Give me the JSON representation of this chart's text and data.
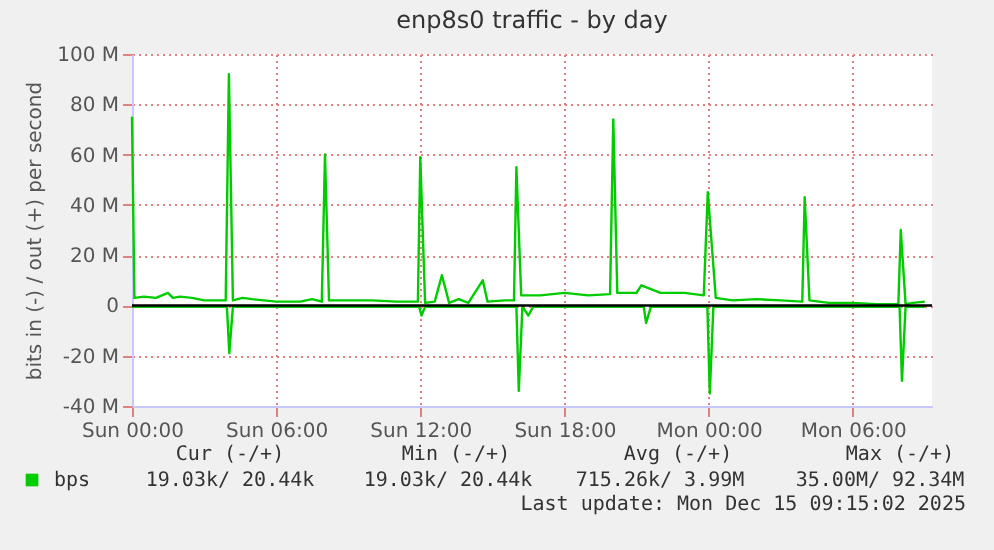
{
  "chart_data": {
    "type": "line",
    "title": "enp8s0 traffic - by day",
    "ylabel": "bits in (-) / out (+) per second",
    "xlim": [
      "2025-12-14T00:00",
      "2025-12-15T09:18"
    ],
    "xticks": [
      {
        "value": "2025-12-14T00:00",
        "label": "Sun 00:00"
      },
      {
        "value": "2025-12-14T06:00",
        "label": "Sun 06:00"
      },
      {
        "value": "2025-12-14T12:00",
        "label": "Sun 12:00"
      },
      {
        "value": "2025-12-14T18:00",
        "label": "Sun 18:00"
      },
      {
        "value": "2025-12-15T00:00",
        "label": "Mon 00:00"
      },
      {
        "value": "2025-12-15T06:00",
        "label": "Mon 06:00"
      }
    ],
    "ylim": [
      -40,
      100
    ],
    "yticks": [
      {
        "value": -40,
        "label": "-40 M"
      },
      {
        "value": -20,
        "label": "-20 M"
      },
      {
        "value": 0,
        "label": "0"
      },
      {
        "value": 20,
        "label": "20 M"
      },
      {
        "value": 40,
        "label": "40 M"
      },
      {
        "value": 60,
        "label": "60 M"
      },
      {
        "value": 80,
        "label": "80 M"
      },
      {
        "value": 100,
        "label": "100 M"
      }
    ],
    "grid": true,
    "legend": "bottom left",
    "ref_lines": [
      {
        "axis": "y",
        "value": 0,
        "color": "#000000"
      }
    ],
    "series": [
      {
        "name": "bps",
        "color": "#00cc00",
        "x": [
          "2025-12-14T00:00",
          "2025-12-14T00:06",
          "2025-12-14T00:30",
          "2025-12-14T01:00",
          "2025-12-14T01:30",
          "2025-12-14T01:42",
          "2025-12-14T02:00",
          "2025-12-14T02:30",
          "2025-12-14T03:00",
          "2025-12-14T03:54",
          "2025-12-14T04:02",
          "2025-12-14T04:12",
          "2025-12-14T04:36",
          "2025-12-14T05:00",
          "2025-12-14T05:30",
          "2025-12-14T06:00",
          "2025-12-14T07:00",
          "2025-12-14T07:30",
          "2025-12-14T07:54",
          "2025-12-14T08:02",
          "2025-12-14T08:12",
          "2025-12-14T09:00",
          "2025-12-14T10:00",
          "2025-12-14T11:00",
          "2025-12-14T11:54",
          "2025-12-14T12:00",
          "2025-12-14T12:12",
          "2025-12-14T12:36",
          "2025-12-14T12:54",
          "2025-12-14T13:12",
          "2025-12-14T13:36",
          "2025-12-14T14:00",
          "2025-12-14T14:36",
          "2025-12-14T14:48",
          "2025-12-14T15:30",
          "2025-12-14T15:54",
          "2025-12-14T16:00",
          "2025-12-14T16:12",
          "2025-12-14T17:00",
          "2025-12-14T18:00",
          "2025-12-14T19:00",
          "2025-12-14T19:54",
          "2025-12-14T20:02",
          "2025-12-14T20:12",
          "2025-12-14T21:00",
          "2025-12-14T21:12",
          "2025-12-14T22:00",
          "2025-12-14T23:00",
          "2025-12-14T23:48",
          "2025-12-14T23:58",
          "2025-12-15T00:18",
          "2025-12-15T01:00",
          "2025-12-15T02:00",
          "2025-12-15T03:00",
          "2025-12-15T03:54",
          "2025-12-15T04:00",
          "2025-12-15T04:12",
          "2025-12-15T05:00",
          "2025-12-15T06:00",
          "2025-12-15T07:00",
          "2025-12-15T07:54",
          "2025-12-15T08:00",
          "2025-12-15T08:12",
          "2025-12-15T08:30",
          "2025-12-15T09:00"
        ],
        "values": [
          75,
          3,
          3.5,
          3,
          5,
          3,
          3.5,
          3,
          2,
          2,
          92,
          2,
          3,
          2.5,
          2,
          1.5,
          1.5,
          2.5,
          1.5,
          60,
          2,
          2,
          2,
          1.5,
          1.5,
          59,
          1,
          1.5,
          12,
          1,
          2.5,
          1,
          10,
          1.5,
          2,
          2,
          55,
          4,
          4,
          5,
          4,
          4.5,
          74,
          5,
          5,
          8,
          5,
          5,
          4,
          45,
          3,
          2,
          2.5,
          2,
          1.5,
          43,
          2,
          1,
          1,
          0.5,
          0.5,
          30,
          0.5,
          1,
          1.5
        ]
      },
      {
        "color": "#00cc00",
        "x": [
          "2025-12-14T00:00",
          "2025-12-14T03:57",
          "2025-12-14T04:03",
          "2025-12-14T04:12",
          "2025-12-14T11:57",
          "2025-12-14T12:03",
          "2025-12-14T12:12",
          "2025-12-14T16:00",
          "2025-12-14T16:06",
          "2025-12-14T16:15",
          "2025-12-14T16:30",
          "2025-12-14T16:42",
          "2025-12-14T21:18",
          "2025-12-14T21:24",
          "2025-12-14T21:36",
          "2025-12-14T23:57",
          "2025-12-15T00:03",
          "2025-12-15T00:12",
          "2025-12-15T07:57",
          "2025-12-15T08:03",
          "2025-12-15T08:12",
          "2025-12-15T09:00"
        ],
        "values": [
          -0.5,
          -0.5,
          -19,
          -0.5,
          -0.5,
          -4,
          -0.5,
          -0.5,
          -34,
          -0.5,
          -4,
          -0.5,
          -0.5,
          -7,
          -0.5,
          -0.5,
          -35,
          -0.5,
          -0.5,
          -30,
          -0.5,
          -0.5
        ]
      }
    ],
    "annotations": [
      "Cur (-/+)",
      "Min (-/+)",
      "Avg (-/+)",
      "Max (-/+)",
      "19.03k/ 20.44k",
      "19.03k/ 20.44k",
      "715.26k/  3.99M",
      "35.00M/ 92.34M",
      "Last update: Mon Dec 15 09:15:02 2025"
    ]
  }
}
